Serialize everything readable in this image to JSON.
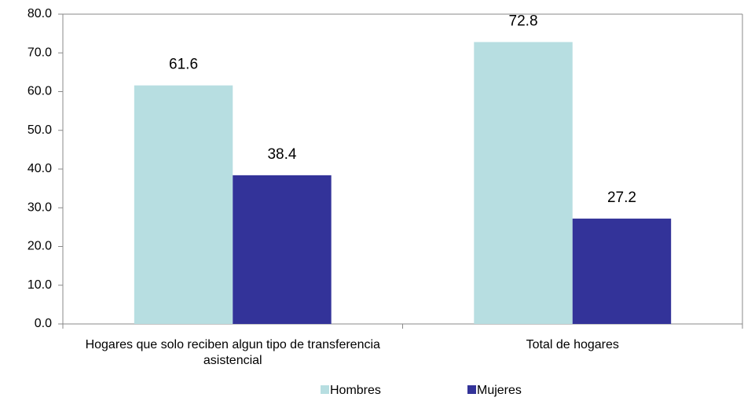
{
  "chart_data": {
    "type": "bar",
    "categories": [
      "Hogares que solo reciben algun tipo de transferencia asistencial",
      "Total de hogares"
    ],
    "series": [
      {
        "name": "Hombres",
        "color": "#b7dee1",
        "values": [
          61.6,
          72.8
        ]
      },
      {
        "name": "Mujeres",
        "color": "#333399",
        "values": [
          38.4,
          27.2
        ]
      }
    ],
    "ylim": [
      0,
      80
    ],
    "yticks": [
      {
        "value": 0,
        "label": "0.0"
      },
      {
        "value": 10,
        "label": "10.0"
      },
      {
        "value": 20,
        "label": "20.0"
      },
      {
        "value": 30,
        "label": "30.0"
      },
      {
        "value": 40,
        "label": "40.0"
      },
      {
        "value": 50,
        "label": "50.0"
      },
      {
        "value": 60,
        "label": "60.0"
      },
      {
        "value": 70,
        "label": "70.0"
      },
      {
        "value": 80,
        "label": "80.0"
      }
    ],
    "grid": false,
    "legend": "bottom"
  }
}
